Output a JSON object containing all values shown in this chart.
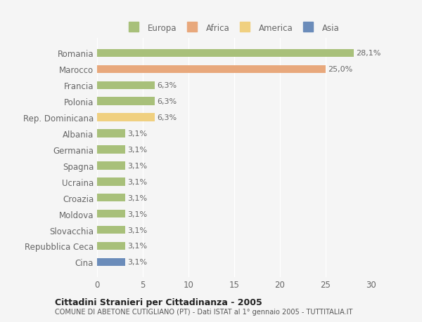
{
  "categories": [
    "Romania",
    "Marocco",
    "Francia",
    "Polonia",
    "Rep. Dominicana",
    "Albania",
    "Germania",
    "Spagna",
    "Ucraina",
    "Croazia",
    "Moldova",
    "Slovacchia",
    "Repubblica Ceca",
    "Cina"
  ],
  "values": [
    28.1,
    25.0,
    6.3,
    6.3,
    6.3,
    3.1,
    3.1,
    3.1,
    3.1,
    3.1,
    3.1,
    3.1,
    3.1,
    3.1
  ],
  "labels": [
    "28,1%",
    "25,0%",
    "6,3%",
    "6,3%",
    "6,3%",
    "3,1%",
    "3,1%",
    "3,1%",
    "3,1%",
    "3,1%",
    "3,1%",
    "3,1%",
    "3,1%",
    "3,1%"
  ],
  "bar_colors": [
    "#a8c07a",
    "#e8a87c",
    "#a8c07a",
    "#a8c07a",
    "#f0d080",
    "#a8c07a",
    "#a8c07a",
    "#a8c07a",
    "#a8c07a",
    "#a8c07a",
    "#a8c07a",
    "#a8c07a",
    "#a8c07a",
    "#6b8cba"
  ],
  "legend_labels": [
    "Europa",
    "Africa",
    "America",
    "Asia"
  ],
  "legend_colors": [
    "#a8c07a",
    "#e8a87c",
    "#f0d080",
    "#6b8cba"
  ],
  "title": "Cittadini Stranieri per Cittadinanza - 2005",
  "subtitle": "COMUNE DI ABETONE CUTIGLIANO (PT) - Dati ISTAT al 1° gennaio 2005 - TUTTITALIA.IT",
  "xlim": [
    0,
    30
  ],
  "xticks": [
    0,
    5,
    10,
    15,
    20,
    25,
    30
  ],
  "background_color": "#f5f5f5",
  "plot_bg_color": "#f5f5f5",
  "grid_color": "#ffffff",
  "label_color": "#666666",
  "bar_height": 0.5
}
